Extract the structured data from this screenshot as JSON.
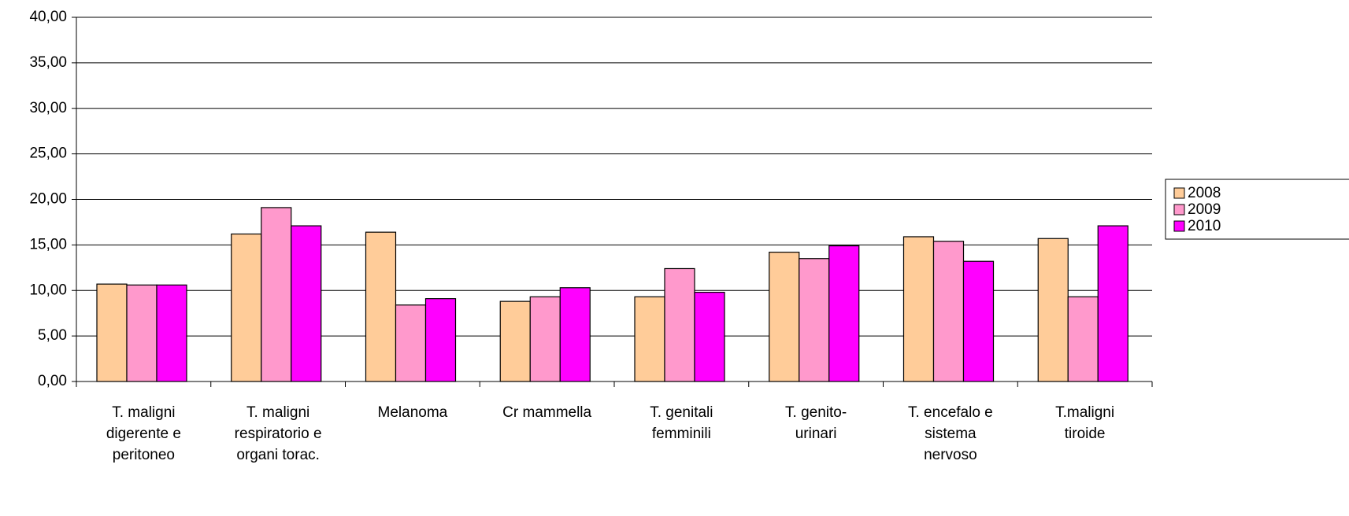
{
  "chart_data": {
    "type": "bar",
    "categories": [
      "T. maligni\ndigerente e\nperitoneo",
      "T. maligni\nrespiratorio e\norgani torac.",
      "Melanoma",
      "Cr mammella",
      "T. genitali\nfemminili",
      "T. genito-\nurinari",
      "T. encefalo e\nsistema\nnervoso",
      "T.maligni\ntiroide"
    ],
    "series": [
      {
        "name": "2008",
        "color": "#ffcc99",
        "values": [
          10.7,
          16.2,
          16.4,
          8.8,
          9.3,
          14.2,
          15.9,
          15.7
        ]
      },
      {
        "name": "2009",
        "color": "#ff99cc",
        "values": [
          10.6,
          19.1,
          8.4,
          9.3,
          12.4,
          13.5,
          15.4,
          9.3
        ]
      },
      {
        "name": "2010",
        "color": "#ff00ff",
        "values": [
          10.6,
          17.1,
          9.1,
          10.3,
          9.8,
          14.9,
          13.2,
          17.1
        ]
      }
    ],
    "ylim": [
      0,
      40
    ],
    "yticks": [
      {
        "value": 0,
        "label": "0,00"
      },
      {
        "value": 5,
        "label": "5,00"
      },
      {
        "value": 10,
        "label": "10,00"
      },
      {
        "value": 15,
        "label": "15,00"
      },
      {
        "value": 20,
        "label": "20,00"
      },
      {
        "value": 25,
        "label": "25,00"
      },
      {
        "value": 30,
        "label": "30,00"
      },
      {
        "value": 35,
        "label": "35,00"
      },
      {
        "value": 40,
        "label": "40,00"
      }
    ],
    "grid": true,
    "legend": "right"
  }
}
